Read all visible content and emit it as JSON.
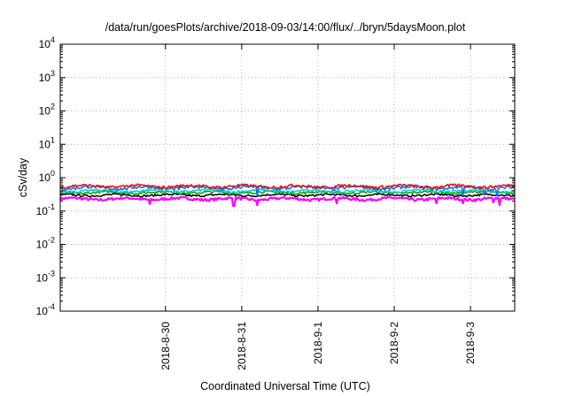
{
  "chart_data": {
    "type": "line",
    "title": "/data/run/goesPlots/archive/2018-09-03/14:00/flux/../bryn/5daysMoon.plot",
    "xlabel": "Coordinated Universal Time (UTC)",
    "ylabel": "cSv/day",
    "y_scale": "log",
    "ylim": [
      0.0001,
      10000
    ],
    "xlim": [
      -1.38,
      4.58
    ],
    "y_ticks": [
      {
        "base": "10",
        "exp": "4",
        "value": 10000
      },
      {
        "base": "10",
        "exp": "3",
        "value": 1000
      },
      {
        "base": "10",
        "exp": "2",
        "value": 100
      },
      {
        "base": "10",
        "exp": "1",
        "value": 10
      },
      {
        "base": "10",
        "exp": "0",
        "value": 1
      },
      {
        "base": "10",
        "exp": "-1",
        "value": 0.1
      },
      {
        "base": "10",
        "exp": "-2",
        "value": 0.01
      },
      {
        "base": "10",
        "exp": "-3",
        "value": 0.001
      },
      {
        "base": "10",
        "exp": "-4",
        "value": 0.0001
      }
    ],
    "x_ticks": [
      {
        "label": "2018-8-30",
        "value": 0
      },
      {
        "label": "2018-8-31",
        "value": 1
      },
      {
        "label": "2018-9-1",
        "value": 2
      },
      {
        "label": "2018-9-2",
        "value": 3
      },
      {
        "label": "2018-9-3",
        "value": 4
      }
    ],
    "grid": true,
    "legend": "none",
    "series": [
      {
        "color": "#ff00ff",
        "base": 0.23,
        "amp": 0.03,
        "spikes": [
          [
            -0.2,
            0.16
          ],
          [
            0.9,
            0.14
          ],
          [
            1.2,
            0.15
          ],
          [
            2.25,
            0.17
          ],
          [
            3.55,
            0.17
          ],
          [
            3.9,
            0.17
          ],
          [
            4.3,
            0.18
          ],
          [
            4.38,
            0.15
          ]
        ]
      },
      {
        "color": "#000000",
        "base": 0.3,
        "amp": 0.03,
        "spikes": []
      },
      {
        "color": "#00a000",
        "base": 0.36,
        "amp": 0.04,
        "spikes": []
      },
      {
        "color": "#00d0d0",
        "base": 0.4,
        "amp": 0.05,
        "spikes": []
      },
      {
        "color": "#0070ff",
        "base": 0.5,
        "amp": 0.08,
        "spikes": [
          [
            1.2,
            0.28
          ],
          [
            3.9,
            0.28
          ],
          [
            4.18,
            0.3
          ],
          [
            4.35,
            0.28
          ]
        ]
      },
      {
        "color": "#ff0000",
        "base": 0.55,
        "amp": 0.08,
        "spikes": []
      }
    ]
  }
}
